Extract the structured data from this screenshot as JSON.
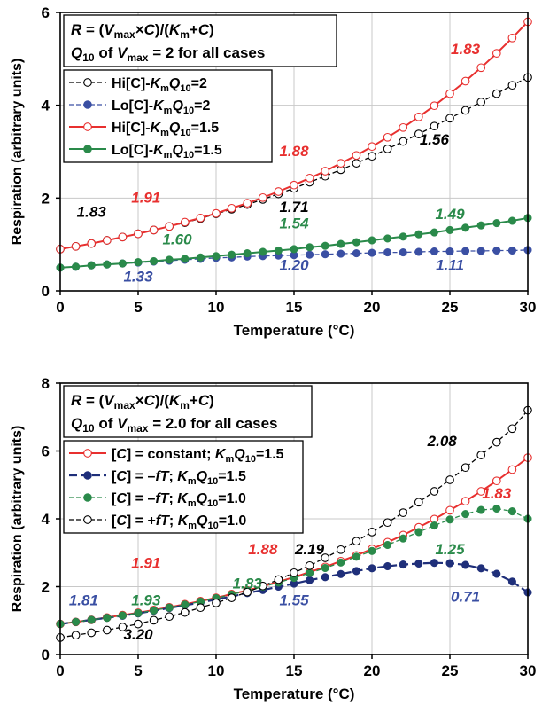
{
  "chart_data": [
    {
      "type": "line",
      "xlabel": "Temperature (°C)",
      "ylabel": "Respiration (arbitrary units)",
      "xlim": [
        0,
        30
      ],
      "ylim": [
        0,
        6
      ],
      "xticks": [
        "0",
        "5",
        "10",
        "15",
        "20",
        "25",
        "30"
      ],
      "yticks": [
        "0",
        "2",
        "4",
        "6"
      ],
      "grid": true,
      "legend_position": "top-left",
      "title_box": {
        "line1": {
          "a": "R",
          "b": " = (",
          "c": "V",
          "d": "max",
          "e": "×",
          "f": "C",
          "g": ")/(",
          "h": "K",
          "i": "m",
          "j": "+",
          "k": "C",
          "l": ")"
        },
        "line2": {
          "a": "Q",
          "b": "10",
          "c": " of ",
          "d": "V",
          "e": "max",
          "f": " = 2 for all cases"
        }
      },
      "series": [
        {
          "legend": {
            "pre": "Hi[C]-",
            "k": "K",
            "m": "m",
            "q": "Q",
            "s": "10",
            "post": "=2"
          },
          "color": "#000000",
          "marker": "open",
          "line": "dashed",
          "x": [
            0,
            1,
            2,
            3,
            4,
            5,
            6,
            7,
            8,
            9,
            10,
            11,
            12,
            13,
            14,
            15,
            16,
            17,
            18,
            19,
            20,
            21,
            22,
            23,
            24,
            25,
            26,
            27,
            28,
            29,
            30
          ],
          "y": [
            0.9,
            0.96,
            1.02,
            1.09,
            1.16,
            1.23,
            1.31,
            1.39,
            1.47,
            1.56,
            1.66,
            1.76,
            1.86,
            1.97,
            2.09,
            2.21,
            2.34,
            2.47,
            2.61,
            2.75,
            2.9,
            3.06,
            3.22,
            3.38,
            3.55,
            3.72,
            3.89,
            4.07,
            4.25,
            4.43,
            4.6
          ]
        },
        {
          "legend": {
            "pre": "Lo[C]-",
            "k": "K",
            "m": "m",
            "q": "Q",
            "s": "10",
            "post": "=2"
          },
          "color": "#3a4fa3",
          "marker": "filled",
          "line": "dashed",
          "x": [
            0,
            1,
            2,
            3,
            4,
            5,
            6,
            7,
            8,
            9,
            10,
            11,
            12,
            13,
            14,
            15,
            16,
            17,
            18,
            19,
            20,
            21,
            22,
            23,
            24,
            25,
            26,
            27,
            28,
            29,
            30
          ],
          "y": [
            0.5,
            0.52,
            0.55,
            0.57,
            0.59,
            0.61,
            0.63,
            0.65,
            0.67,
            0.69,
            0.71,
            0.72,
            0.74,
            0.75,
            0.76,
            0.77,
            0.78,
            0.79,
            0.8,
            0.81,
            0.82,
            0.83,
            0.83,
            0.84,
            0.85,
            0.85,
            0.86,
            0.86,
            0.87,
            0.87,
            0.88
          ]
        },
        {
          "legend": {
            "pre": "Hi[C]-",
            "k": "K",
            "m": "m",
            "q": "Q",
            "s": "10",
            "post": "=1.5"
          },
          "color": "#e8302f",
          "marker": "open",
          "line": "solid",
          "x": [
            0,
            1,
            2,
            3,
            4,
            5,
            6,
            7,
            8,
            9,
            10,
            11,
            12,
            13,
            14,
            15,
            16,
            17,
            18,
            19,
            20,
            21,
            22,
            23,
            24,
            25,
            26,
            27,
            28,
            29,
            30
          ],
          "y": [
            0.9,
            0.96,
            1.02,
            1.09,
            1.16,
            1.23,
            1.31,
            1.39,
            1.48,
            1.57,
            1.67,
            1.78,
            1.89,
            2.01,
            2.14,
            2.28,
            2.43,
            2.58,
            2.75,
            2.92,
            3.11,
            3.31,
            3.52,
            3.75,
            3.99,
            4.25,
            4.52,
            4.81,
            5.12,
            5.45,
            5.8
          ]
        },
        {
          "legend": {
            "pre": "Lo[C]-",
            "k": "K",
            "m": "m",
            "q": "Q",
            "s": "10",
            "post": "=1.5"
          },
          "color": "#2a8a4a",
          "marker": "filled",
          "line": "solid",
          "x": [
            0,
            1,
            2,
            3,
            4,
            5,
            6,
            7,
            8,
            9,
            10,
            11,
            12,
            13,
            14,
            15,
            16,
            17,
            18,
            19,
            20,
            21,
            22,
            23,
            24,
            25,
            26,
            27,
            28,
            29,
            30
          ],
          "y": [
            0.5,
            0.52,
            0.55,
            0.57,
            0.59,
            0.62,
            0.64,
            0.67,
            0.69,
            0.72,
            0.75,
            0.78,
            0.81,
            0.84,
            0.87,
            0.9,
            0.94,
            0.97,
            1.01,
            1.05,
            1.09,
            1.13,
            1.17,
            1.22,
            1.26,
            1.31,
            1.36,
            1.41,
            1.46,
            1.51,
            1.57
          ]
        }
      ],
      "annotations": [
        {
          "text": "1.83",
          "x": 26,
          "y": 5.1,
          "color": "#e8302f"
        },
        {
          "text": "1.88",
          "x": 15,
          "y": 2.9,
          "color": "#e8302f"
        },
        {
          "text": "1.91",
          "x": 5.5,
          "y": 1.9,
          "color": "#e8302f"
        },
        {
          "text": "1.83",
          "x": 2,
          "y": 1.6,
          "color": "#000000"
        },
        {
          "text": "1.56",
          "x": 24,
          "y": 3.15,
          "color": "#000000"
        },
        {
          "text": "1.71",
          "x": 15,
          "y": 1.7,
          "color": "#000000"
        },
        {
          "text": "1.60",
          "x": 7.5,
          "y": 1.0,
          "color": "#2a8a4a"
        },
        {
          "text": "1.54",
          "x": 15,
          "y": 1.35,
          "color": "#2a8a4a"
        },
        {
          "text": "1.49",
          "x": 25,
          "y": 1.55,
          "color": "#2a8a4a"
        },
        {
          "text": "1.33",
          "x": 5,
          "y": 0.2,
          "color": "#3a4fa3"
        },
        {
          "text": "1.20",
          "x": 15,
          "y": 0.45,
          "color": "#3a4fa3"
        },
        {
          "text": "1.11",
          "x": 25,
          "y": 0.45,
          "color": "#3a4fa3"
        }
      ]
    },
    {
      "type": "line",
      "xlabel": "Temperature (°C)",
      "ylabel": "Respiration (arbitrary units)",
      "xlim": [
        0,
        30
      ],
      "ylim": [
        0,
        8
      ],
      "xticks": [
        "0",
        "5",
        "10",
        "15",
        "20",
        "25",
        "30"
      ],
      "yticks": [
        "0",
        "2",
        "4",
        "6",
        "8"
      ],
      "grid": true,
      "legend_position": "top-left",
      "title_box": {
        "line1": {
          "a": "R",
          "b": " = (",
          "c": "V",
          "d": "max",
          "e": "×",
          "f": "C",
          "g": ")/(",
          "h": "K",
          "i": "m",
          "j": "+",
          "k": "C",
          "l": ")"
        },
        "line2": {
          "a": "Q",
          "b": "10",
          "c": " of ",
          "d": "V",
          "e": "max",
          "f": " = 2.0 for all cases"
        }
      },
      "series": [
        {
          "legend": {
            "pre": "[",
            "c": "C",
            "mid": "] = constant; ",
            "k": "K",
            "m": "m",
            "q": "Q",
            "s": "10",
            "post": "=1.5"
          },
          "color": "#e8302f",
          "marker": "open",
          "line": "solid",
          "x": [
            0,
            1,
            2,
            3,
            4,
            5,
            6,
            7,
            8,
            9,
            10,
            11,
            12,
            13,
            14,
            15,
            16,
            17,
            18,
            19,
            20,
            21,
            22,
            23,
            24,
            25,
            26,
            27,
            28,
            29,
            30
          ],
          "y": [
            0.9,
            0.96,
            1.02,
            1.09,
            1.16,
            1.23,
            1.31,
            1.39,
            1.48,
            1.57,
            1.67,
            1.78,
            1.89,
            2.01,
            2.14,
            2.28,
            2.43,
            2.58,
            2.75,
            2.92,
            3.11,
            3.31,
            3.52,
            3.75,
            3.99,
            4.25,
            4.52,
            4.81,
            5.12,
            5.45,
            5.8
          ]
        },
        {
          "legend": {
            "pre": "[",
            "c": "C",
            "mid": "] = –",
            "f": "fT",
            "mid2": "; ",
            "k": "K",
            "m": "m",
            "q": "Q",
            "s": "10",
            "post": "=1.5"
          },
          "color": "#1f2f7a",
          "marker": "filled",
          "line": "dashed",
          "x": [
            0,
            1,
            2,
            3,
            4,
            5,
            6,
            7,
            8,
            9,
            10,
            11,
            12,
            13,
            14,
            15,
            16,
            17,
            18,
            19,
            20,
            21,
            22,
            23,
            24,
            25,
            26,
            27,
            28,
            29,
            30
          ],
          "y": [
            0.9,
            0.96,
            1.02,
            1.08,
            1.14,
            1.21,
            1.29,
            1.37,
            1.45,
            1.53,
            1.62,
            1.71,
            1.81,
            1.9,
            2.0,
            2.09,
            2.19,
            2.28,
            2.37,
            2.46,
            2.54,
            2.6,
            2.65,
            2.68,
            2.7,
            2.69,
            2.64,
            2.54,
            2.38,
            2.15,
            1.83
          ]
        },
        {
          "legend": {
            "pre": "[",
            "c": "C",
            "mid": "] = –",
            "f": "fT",
            "mid2": "; ",
            "k": "K",
            "m": "m",
            "q": "Q",
            "s": "10",
            "post": "=1.0"
          },
          "color": "#2a8a4a",
          "marker": "filled",
          "line": "dashed",
          "x": [
            0,
            1,
            2,
            3,
            4,
            5,
            6,
            7,
            8,
            9,
            10,
            11,
            12,
            13,
            14,
            15,
            16,
            17,
            18,
            19,
            20,
            21,
            22,
            23,
            24,
            25,
            26,
            27,
            28,
            29,
            30
          ],
          "y": [
            0.9,
            0.96,
            1.02,
            1.08,
            1.15,
            1.22,
            1.3,
            1.38,
            1.47,
            1.56,
            1.66,
            1.77,
            1.88,
            2.0,
            2.12,
            2.26,
            2.4,
            2.55,
            2.71,
            2.88,
            3.05,
            3.23,
            3.42,
            3.61,
            3.8,
            3.98,
            4.14,
            4.26,
            4.3,
            4.22,
            4.0
          ]
        },
        {
          "legend": {
            "pre": "[",
            "c": "C",
            "mid": "] = +",
            "f": "fT",
            "mid2": "; ",
            "k": "K",
            "m": "m",
            "q": "Q",
            "s": "10",
            "post": "=1.0"
          },
          "color": "#000000",
          "marker": "open",
          "line": "dashed",
          "x": [
            0,
            1,
            2,
            3,
            4,
            5,
            6,
            7,
            8,
            9,
            10,
            11,
            12,
            13,
            14,
            15,
            16,
            17,
            18,
            19,
            20,
            21,
            22,
            23,
            24,
            25,
            26,
            27,
            28,
            29,
            30
          ],
          "y": [
            0.5,
            0.57,
            0.64,
            0.72,
            0.81,
            0.9,
            1.01,
            1.12,
            1.24,
            1.38,
            1.52,
            1.67,
            1.84,
            2.02,
            2.21,
            2.41,
            2.62,
            2.85,
            3.09,
            3.34,
            3.61,
            3.89,
            4.18,
            4.49,
            4.81,
            5.15,
            5.51,
            5.88,
            6.26,
            6.66,
            7.2
          ]
        }
      ],
      "annotations": [
        {
          "text": "2.08",
          "x": 24.5,
          "y": 6.15,
          "color": "#000000"
        },
        {
          "text": "1.83",
          "x": 28,
          "y": 4.6,
          "color": "#e8302f"
        },
        {
          "text": "1.88",
          "x": 13,
          "y": 2.95,
          "color": "#e8302f"
        },
        {
          "text": "2.19",
          "x": 16,
          "y": 2.95,
          "color": "#000000"
        },
        {
          "text": "1.91",
          "x": 5.5,
          "y": 2.55,
          "color": "#e8302f"
        },
        {
          "text": "1.83",
          "x": 12,
          "y": 1.95,
          "color": "#2a8a4a"
        },
        {
          "text": "1.25",
          "x": 25,
          "y": 2.95,
          "color": "#2a8a4a"
        },
        {
          "text": "1.93",
          "x": 5.5,
          "y": 1.45,
          "color": "#2a8a4a"
        },
        {
          "text": "1.81",
          "x": 1.5,
          "y": 1.45,
          "color": "#3a4fa3"
        },
        {
          "text": "1.55",
          "x": 15,
          "y": 1.45,
          "color": "#3a4fa3"
        },
        {
          "text": "0.71",
          "x": 26,
          "y": 1.55,
          "color": "#3a4fa3"
        },
        {
          "text": "3.20",
          "x": 5,
          "y": 0.45,
          "color": "#000000"
        }
      ]
    }
  ]
}
